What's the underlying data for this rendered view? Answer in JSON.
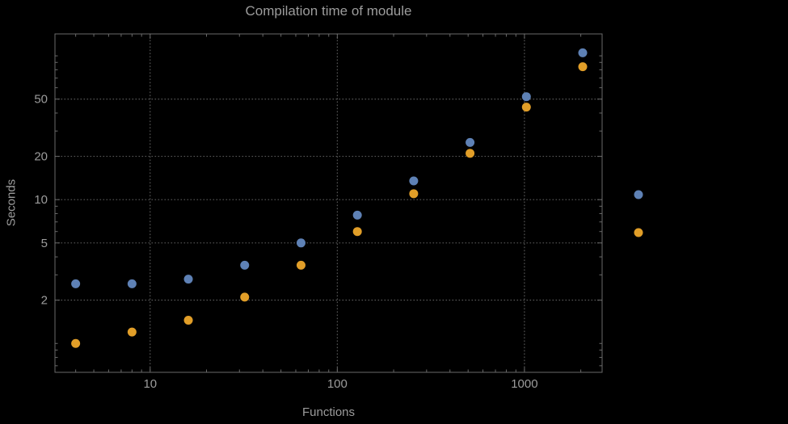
{
  "chart_data": {
    "type": "scatter",
    "title": "Compilation time of module",
    "xlabel": "Functions",
    "ylabel": "Seconds",
    "x_scale": "log",
    "y_scale": "log",
    "xlim": [
      3.1,
      2600
    ],
    "ylim": [
      0.63,
      142
    ],
    "x_ticks": [
      10,
      100,
      1000
    ],
    "y_ticks": [
      2,
      5,
      10,
      20,
      50
    ],
    "grid": true,
    "x": [
      4,
      8,
      16,
      32,
      64,
      128,
      256,
      512,
      1024,
      2048
    ],
    "series": [
      {
        "color": "#5E81B5",
        "values": [
          2.6,
          2.6,
          2.8,
          3.5,
          5.0,
          7.8,
          13.5,
          25,
          52,
          105
        ]
      },
      {
        "color": "#E19E28",
        "values": [
          1.0,
          1.2,
          1.45,
          2.1,
          3.5,
          6.0,
          11,
          21,
          44,
          84
        ]
      }
    ],
    "legend": {
      "position": "right",
      "markers": [
        "#5E81B5",
        "#E19E28"
      ]
    },
    "text_color": "#9c9c9c",
    "grid_color": "#5a5a5a",
    "frame_color": "#6a6a6a",
    "background": "#000000"
  }
}
